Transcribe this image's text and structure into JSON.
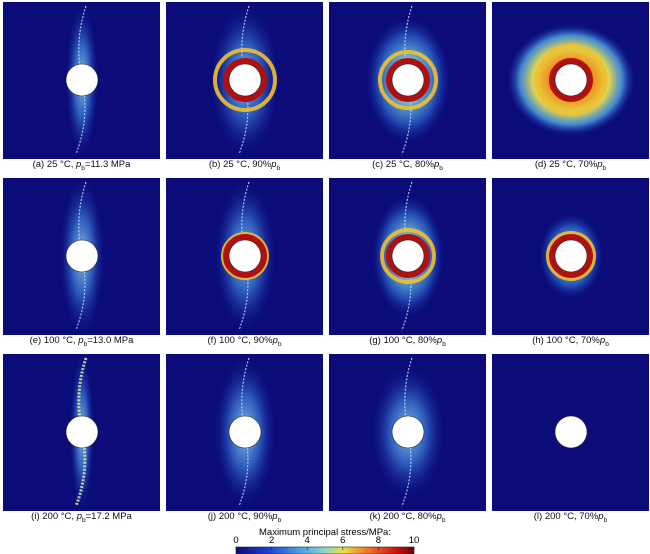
{
  "panels": [
    {
      "prefix": "(a) 25 °C, ",
      "var": "p",
      "sub": "b",
      "suffix": "=11.3 MPa"
    },
    {
      "prefix": "(b) 25 °C, 90%",
      "var": "p",
      "sub": "b"
    },
    {
      "prefix": "(c) 25 °C, 80%",
      "var": "p",
      "sub": "b"
    },
    {
      "prefix": "(d) 25 °C, 70%",
      "var": "p",
      "sub": "b"
    },
    {
      "prefix": "(e) 100 °C, ",
      "var": "p",
      "sub": "b",
      "suffix": "=13.0 MPa"
    },
    {
      "prefix": "(f) 100 °C, 90%",
      "var": "p",
      "sub": "b"
    },
    {
      "prefix": "(g) 100 °C, 80%",
      "var": "p",
      "sub": "b"
    },
    {
      "prefix": "(h) 100 °C, 70%",
      "var": "p",
      "sub": "b"
    },
    {
      "prefix": "(i) 200 °C, ",
      "var": "p",
      "sub": "b",
      "suffix": "=17.2 MPa"
    },
    {
      "prefix": "(j) 200 °C, 90%",
      "var": "p",
      "sub": "b"
    },
    {
      "prefix": "(k) 200 °C, 80%",
      "var": "p",
      "sub": "b"
    },
    {
      "prefix": "(l) 200 °C, 70%",
      "var": "p",
      "sub": "b"
    }
  ],
  "colorbar": {
    "title": "Maximum principal stress/MPa:",
    "range": [
      0,
      10
    ],
    "ticks": [
      0,
      2,
      4,
      6,
      8,
      10
    ]
  }
}
